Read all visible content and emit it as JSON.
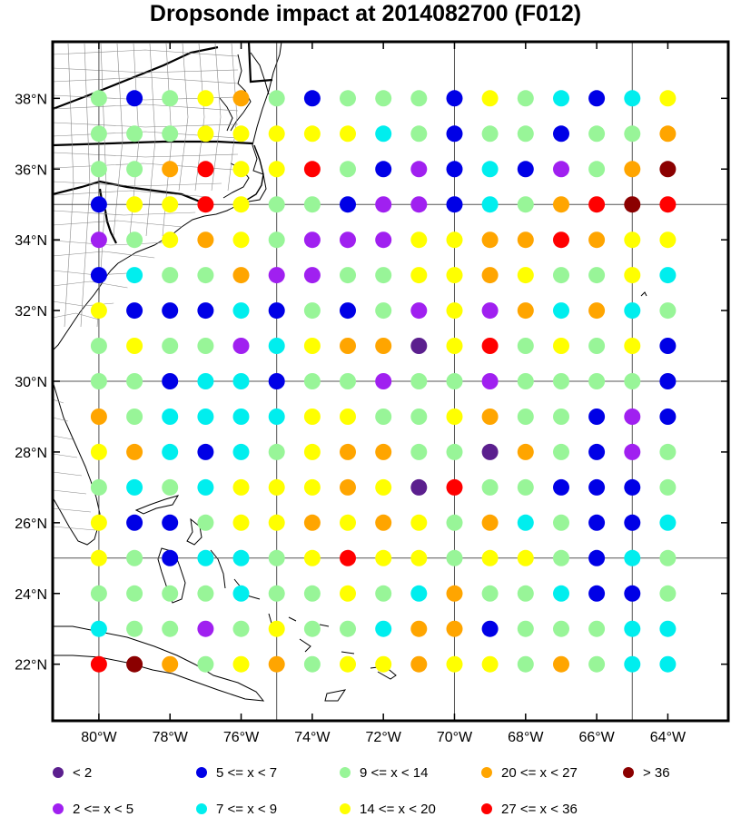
{
  "title": "Dropsonde impact at 2014082700 (F012)",
  "axes": {
    "x_ticks": [
      "80°W",
      "78°W",
      "76°W",
      "74°W",
      "72°W",
      "70°W",
      "68°W",
      "66°W",
      "64°W"
    ],
    "y_ticks": [
      "38°N",
      "36°N",
      "34°N",
      "32°N",
      "30°N",
      "28°N",
      "26°N",
      "24°N",
      "22°N"
    ],
    "lon_range": [
      -81.3,
      -62.3
    ],
    "lat_range": [
      20.4,
      39.6
    ]
  },
  "colors": {
    "c1": "#5b1f8e",
    "c2": "#a020f0",
    "c3": "#0000e6",
    "c4": "#00eeee",
    "c5": "#98f598",
    "c6": "#ffff00",
    "c7": "#ffa500",
    "c8": "#ff0000",
    "c9": "#8b0000",
    "land_line": "#000000",
    "county_line": "#888888",
    "grid_line": "#555555"
  },
  "legend": [
    {
      "cls": 1,
      "label": "<  2"
    },
    {
      "cls": 3,
      "label": "5 <= x <  7"
    },
    {
      "cls": 5,
      "label": "9 <= x < 14"
    },
    {
      "cls": 7,
      "label": "20 <= x < 27"
    },
    {
      "cls": 9,
      "label": "> 36"
    },
    {
      "cls": 2,
      "label": "2 <= x <  5"
    },
    {
      "cls": 4,
      "label": "7 <= x <  9"
    },
    {
      "cls": 6,
      "label": "14 <= x < 20"
    },
    {
      "cls": 8,
      "label": "27 <= x < 36"
    }
  ],
  "chart_data": {
    "type": "scatter",
    "title": "Dropsonde impact at 2014082700 (F012)",
    "lons": [
      -80,
      -79,
      -78,
      -77,
      -76,
      -75,
      -74,
      -73,
      -72,
      -71,
      -70,
      -69,
      -68,
      -67,
      -66,
      -65,
      -64
    ],
    "lats": [
      38,
      37,
      36,
      35,
      34,
      33,
      32,
      31,
      30,
      29,
      28,
      27,
      26,
      25,
      24,
      23,
      22
    ],
    "class_grid": [
      [
        5,
        3,
        5,
        6,
        7,
        5,
        3,
        5,
        5,
        5,
        3,
        6,
        5,
        4,
        3,
        4,
        6
      ],
      [
        5,
        5,
        5,
        6,
        6,
        6,
        6,
        6,
        4,
        5,
        3,
        5,
        5,
        3,
        5,
        5,
        7
      ],
      [
        5,
        5,
        7,
        8,
        6,
        6,
        8,
        5,
        3,
        2,
        3,
        4,
        3,
        2,
        5,
        7,
        9
      ],
      [
        3,
        6,
        6,
        8,
        6,
        5,
        5,
        3,
        2,
        2,
        3,
        4,
        5,
        7,
        8,
        9,
        8
      ],
      [
        2,
        5,
        6,
        7,
        6,
        5,
        2,
        2,
        2,
        6,
        6,
        7,
        7,
        8,
        7,
        6,
        6
      ],
      [
        3,
        4,
        5,
        5,
        7,
        2,
        2,
        5,
        5,
        6,
        6,
        7,
        6,
        5,
        5,
        6,
        4
      ],
      [
        6,
        3,
        3,
        3,
        4,
        3,
        5,
        3,
        5,
        2,
        6,
        2,
        7,
        4,
        7,
        4,
        5
      ],
      [
        5,
        6,
        5,
        5,
        2,
        4,
        6,
        7,
        7,
        1,
        6,
        8,
        5,
        6,
        5,
        6,
        3
      ],
      [
        5,
        5,
        3,
        4,
        4,
        3,
        5,
        5,
        2,
        5,
        5,
        2,
        5,
        5,
        5,
        5,
        3
      ],
      [
        7,
        5,
        4,
        4,
        4,
        4,
        6,
        6,
        5,
        5,
        6,
        7,
        5,
        5,
        3,
        2,
        3
      ],
      [
        6,
        7,
        4,
        3,
        4,
        5,
        6,
        7,
        7,
        5,
        5,
        1,
        7,
        5,
        3,
        2,
        5
      ],
      [
        5,
        4,
        5,
        4,
        6,
        6,
        6,
        7,
        6,
        1,
        8,
        5,
        5,
        3,
        3,
        3,
        5
      ],
      [
        6,
        3,
        3,
        5,
        6,
        6,
        7,
        6,
        7,
        6,
        5,
        7,
        4,
        5,
        3,
        3,
        4
      ],
      [
        6,
        5,
        3,
        4,
        4,
        5,
        6,
        8,
        6,
        6,
        5,
        6,
        6,
        5,
        3,
        4,
        5
      ],
      [
        5,
        5,
        5,
        5,
        4,
        5,
        5,
        6,
        5,
        4,
        7,
        5,
        5,
        4,
        3,
        3,
        5
      ],
      [
        4,
        5,
        5,
        2,
        5,
        6,
        5,
        5,
        4,
        7,
        7,
        3,
        5,
        5,
        5,
        4,
        4
      ],
      [
        8,
        9,
        7,
        5,
        6,
        7,
        5,
        6,
        6,
        7,
        6,
        6,
        5,
        7,
        5,
        4,
        4
      ]
    ]
  }
}
